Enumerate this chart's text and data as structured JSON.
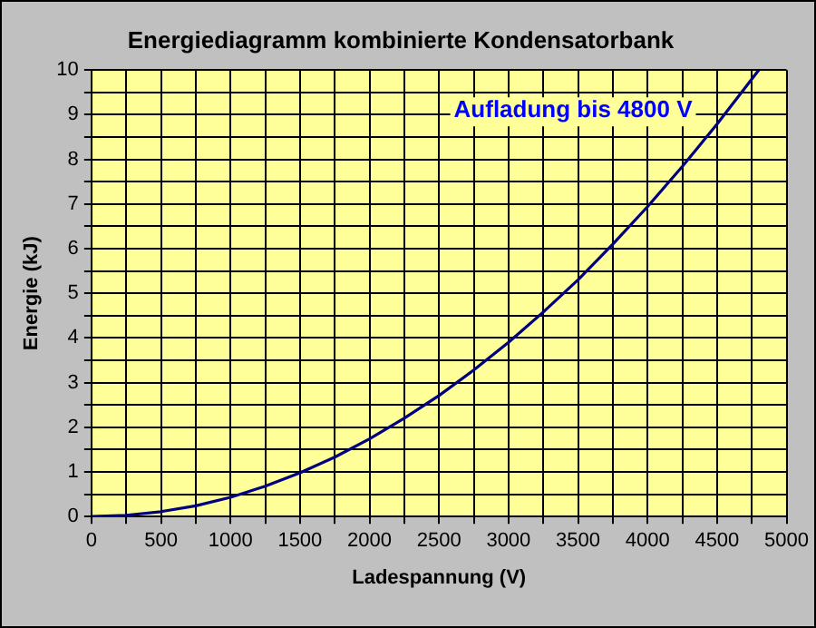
{
  "chart_data": {
    "type": "line",
    "title": "Energiediagramm kombinierte Kondensatorbank",
    "xlabel": "Ladespannung (V)",
    "ylabel": "Energie (kJ)",
    "annotations": [
      "Aufladung bis 4800 V"
    ],
    "x": [
      0,
      250,
      500,
      750,
      1000,
      1250,
      1500,
      1750,
      2000,
      2250,
      2500,
      2750,
      3000,
      3250,
      3500,
      3750,
      4000,
      4250,
      4500,
      4800
    ],
    "series": [
      {
        "color": "#000080",
        "values": [
          0,
          0.03,
          0.11,
          0.24,
          0.43,
          0.68,
          0.98,
          1.33,
          1.74,
          2.2,
          2.71,
          3.28,
          3.9,
          4.58,
          5.3,
          6.1,
          6.94,
          7.84,
          8.79,
          10
        ]
      }
    ],
    "xlim": [
      0,
      5000
    ],
    "xticks": [
      0,
      {
        "value": 250,
        "label": null
      },
      500,
      {
        "value": 750,
        "label": null
      },
      1000,
      {
        "value": 1250,
        "label": null
      },
      1500,
      {
        "value": 1750,
        "label": null
      },
      2000,
      {
        "value": 2250,
        "label": null
      },
      2500,
      {
        "value": 2750,
        "label": null
      },
      3000,
      {
        "value": 3250,
        "label": null
      },
      3500,
      {
        "value": 3750,
        "label": null
      },
      4000,
      {
        "value": 4250,
        "label": null
      },
      4500,
      {
        "value": 4750,
        "label": null
      },
      5000
    ],
    "ylim": [
      0,
      10
    ],
    "yticks": [
      0,
      {
        "value": 0.5,
        "label": null
      },
      1,
      {
        "value": 1.5,
        "label": null
      },
      2,
      {
        "value": 2.5,
        "label": null
      },
      3,
      {
        "value": 3.5,
        "label": null
      },
      4,
      {
        "value": 4.5,
        "label": null
      },
      5,
      {
        "value": 5.5,
        "label": null
      },
      6,
      {
        "value": 6.5,
        "label": null
      },
      7,
      {
        "value": 7.5,
        "label": null
      },
      8,
      {
        "value": 8.5,
        "label": null
      },
      9,
      {
        "value": 9.5,
        "label": null
      },
      10
    ],
    "grid": true,
    "legend": false,
    "marker": "none",
    "line_style": "solid"
  }
}
